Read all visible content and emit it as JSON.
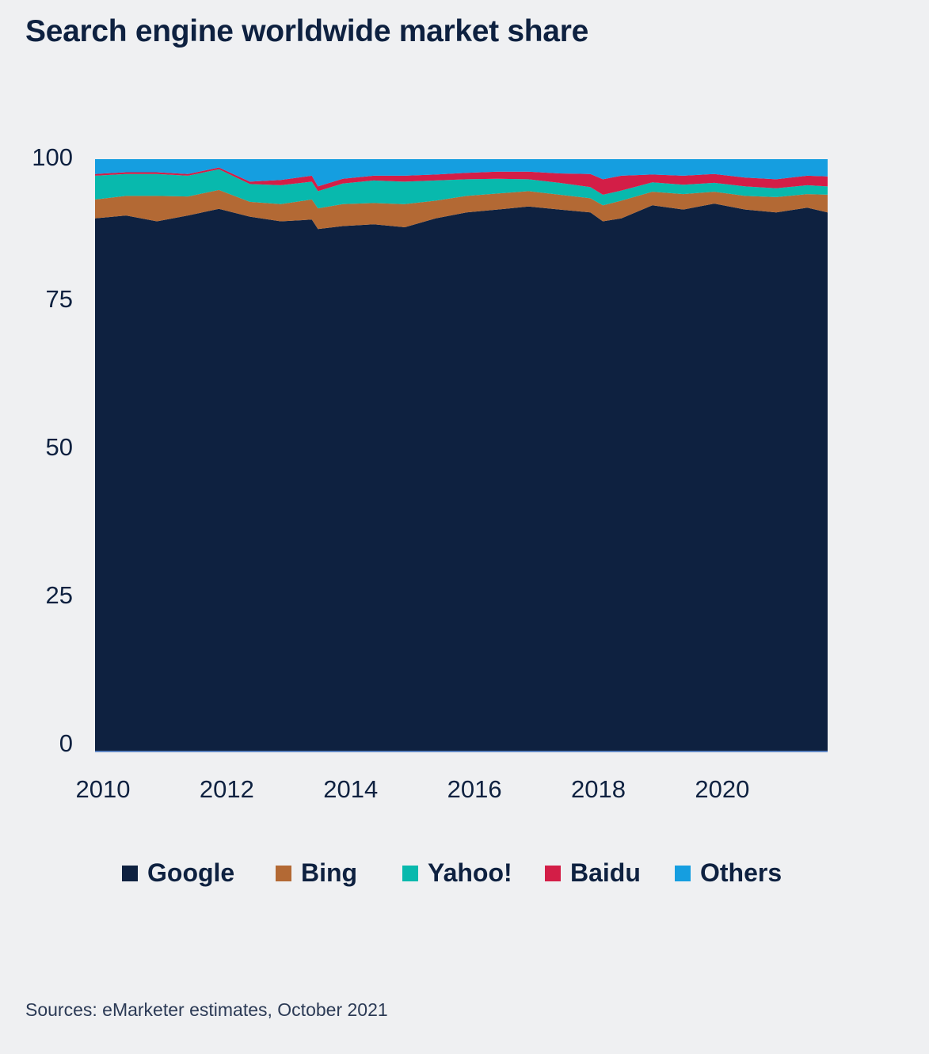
{
  "chart_data": {
    "type": "area",
    "stacked": true,
    "title": "Search engine worldwide market share",
    "source": "Sources: eMarketer estimates, October 2021",
    "xlabel": "",
    "ylabel": "",
    "ylim": [
      0,
      100
    ],
    "y_ticks": [
      0,
      25,
      50,
      75,
      100
    ],
    "x_range": [
      2010,
      2021.83
    ],
    "x_ticks": [
      2010,
      2012,
      2014,
      2016,
      2018,
      2020
    ],
    "grid": false,
    "legend_position": "bottom",
    "x": [
      2010,
      2010.5,
      2011,
      2011.5,
      2012,
      2012.5,
      2013,
      2013.5,
      2013.6,
      2014,
      2014.5,
      2015,
      2015.5,
      2016,
      2016.5,
      2017,
      2017.5,
      2018,
      2018.2,
      2018.5,
      2019,
      2019.5,
      2020,
      2020.5,
      2021,
      2021.5,
      2021.83
    ],
    "series": [
      {
        "name": "Google",
        "color": "#0e2140",
        "values": [
          90.0,
          90.5,
          89.5,
          90.5,
          91.6,
          90.3,
          89.5,
          89.8,
          88.2,
          88.7,
          89.0,
          88.5,
          90.0,
          91.0,
          91.5,
          92.0,
          91.5,
          91.0,
          89.5,
          90.0,
          92.2,
          91.5,
          92.5,
          91.5,
          91.0,
          91.8,
          91.0
        ]
      },
      {
        "name": "Bing",
        "color": "#b36934",
        "values": [
          3.2,
          3.3,
          4.3,
          3.2,
          3.2,
          2.5,
          2.9,
          3.4,
          3.5,
          3.7,
          3.6,
          3.9,
          3.0,
          2.8,
          2.7,
          2.6,
          2.5,
          2.4,
          2.7,
          3.0,
          2.3,
          2.6,
          2.0,
          2.3,
          2.6,
          2.3,
          3.0
        ]
      },
      {
        "name": "Yahoo!",
        "color": "#08b9ad",
        "values": [
          4.0,
          3.7,
          3.7,
          3.5,
          3.5,
          3.0,
          3.2,
          3.0,
          2.9,
          3.5,
          3.8,
          3.8,
          3.4,
          2.8,
          2.5,
          2.0,
          2.0,
          1.9,
          1.8,
          1.7,
          1.6,
          1.6,
          1.5,
          1.6,
          1.5,
          1.5,
          1.4
        ]
      },
      {
        "name": "Baidu",
        "color": "#d31e47",
        "values": [
          0.3,
          0.3,
          0.3,
          0.3,
          0.3,
          0.4,
          0.9,
          1.0,
          0.8,
          0.8,
          0.8,
          1.0,
          1.0,
          1.1,
          1.2,
          1.3,
          1.6,
          2.2,
          2.6,
          2.5,
          1.3,
          1.5,
          1.5,
          1.5,
          1.5,
          1.6,
          1.7
        ]
      },
      {
        "name": "Others",
        "color": "#159ee0",
        "values": [
          2.5,
          2.2,
          2.2,
          2.5,
          1.4,
          3.8,
          3.5,
          2.8,
          4.6,
          3.3,
          2.8,
          2.8,
          2.6,
          2.3,
          2.1,
          2.1,
          2.4,
          2.5,
          3.4,
          2.8,
          2.6,
          2.8,
          2.5,
          3.1,
          3.4,
          2.8,
          2.9
        ]
      }
    ]
  }
}
